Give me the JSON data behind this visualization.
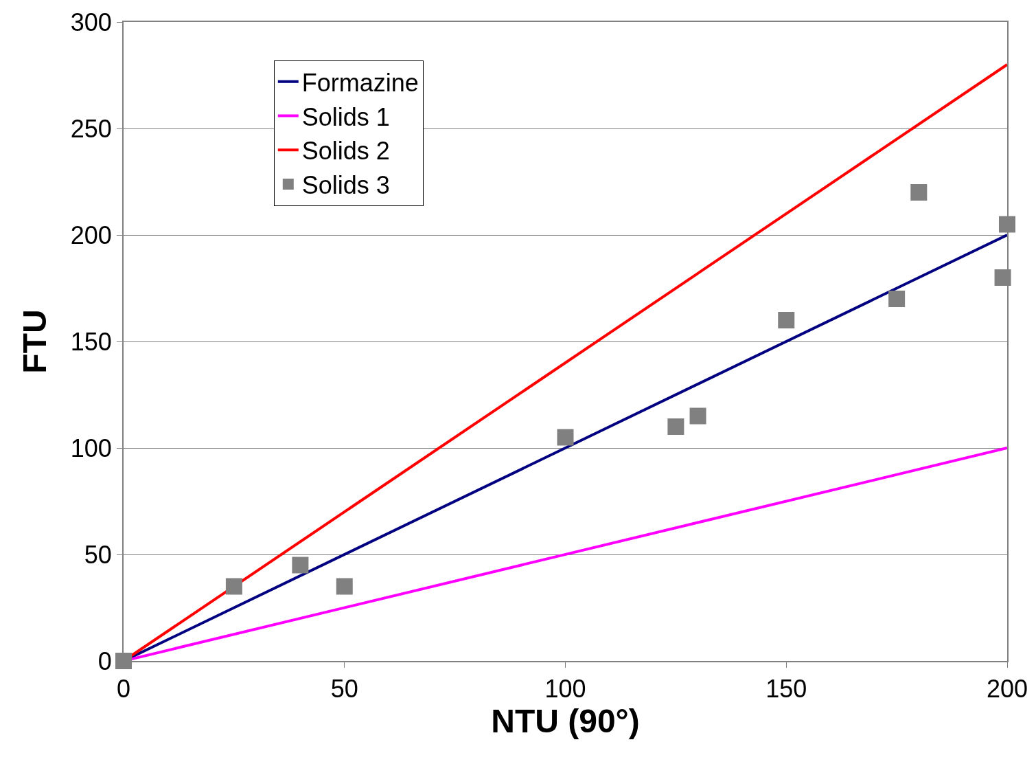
{
  "chart_data": {
    "type": "line",
    "xlabel": "NTU (90°)",
    "ylabel": "FTU",
    "xlim": [
      0,
      200
    ],
    "xticks": [
      0,
      50,
      100,
      150,
      200
    ],
    "ylim": [
      0,
      300
    ],
    "yticks": [
      0,
      50,
      100,
      150,
      200,
      250,
      300
    ],
    "grid": "y",
    "legend": "top left",
    "marker": "none",
    "line_style": "solid",
    "series": [
      {
        "name": "Formazine",
        "color": "#000080",
        "x": [
          0,
          200
        ],
        "values": [
          0,
          200
        ]
      },
      {
        "name": "Solids 1",
        "color": "#ff00ff",
        "x": [
          0,
          200
        ],
        "values": [
          0,
          100
        ]
      },
      {
        "name": "Solids 2",
        "color": "#ff0000",
        "x": [
          0,
          200
        ],
        "values": [
          0,
          280
        ]
      },
      {
        "name": "Solids 3",
        "type": "scatter",
        "marker": "square",
        "color": "#808080",
        "x": [
          0,
          25,
          40,
          50,
          100,
          125,
          130,
          150,
          175,
          180,
          200,
          199
        ],
        "values": [
          0,
          35,
          45,
          35,
          105,
          110,
          115,
          160,
          170,
          220,
          205,
          180
        ]
      }
    ]
  }
}
